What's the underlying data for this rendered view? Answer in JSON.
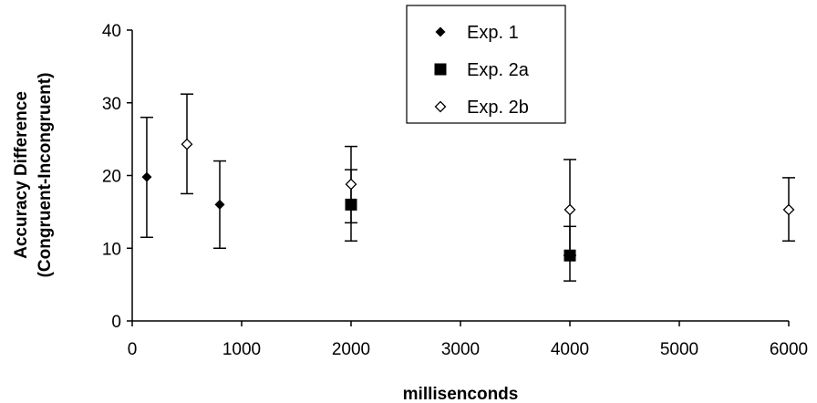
{
  "chart_data": {
    "type": "scatter",
    "title": "",
    "xlabel": "millisenconds",
    "ylabel_lines": [
      "Accuracy Difference",
      "(Congruent-Incongruent)"
    ],
    "xlim": [
      0,
      6000
    ],
    "ylim": [
      0,
      40
    ],
    "x_ticks": [
      0,
      1000,
      2000,
      3000,
      4000,
      5000,
      6000
    ],
    "y_ticks": [
      0,
      10,
      20,
      30,
      40
    ],
    "grid": false,
    "legend_position": "top-center",
    "series": [
      {
        "name": "Exp. 1",
        "marker": "filled-diamond",
        "points": [
          {
            "x": 133,
            "y": 19.8,
            "err_low": 11.5,
            "err_high": 28.0
          },
          {
            "x": 800,
            "y": 16.0,
            "err_low": 10.0,
            "err_high": 22.0
          }
        ]
      },
      {
        "name": "Exp. 2a",
        "marker": "filled-square",
        "points": [
          {
            "x": 2000,
            "y": 16.0,
            "err_low": 11.0,
            "err_high": 20.8
          },
          {
            "x": 4000,
            "y": 9.0,
            "err_low": 5.5,
            "err_high": 13.0
          }
        ]
      },
      {
        "name": "Exp. 2b",
        "marker": "open-diamond",
        "points": [
          {
            "x": 500,
            "y": 24.3,
            "err_low": 17.5,
            "err_high": 31.2
          },
          {
            "x": 2000,
            "y": 18.8,
            "err_low": 13.5,
            "err_high": 24.0
          },
          {
            "x": 4000,
            "y": 15.3,
            "err_low": 9.0,
            "err_high": 22.2
          },
          {
            "x": 6000,
            "y": 15.3,
            "err_low": 11.0,
            "err_high": 19.7
          }
        ]
      }
    ]
  }
}
